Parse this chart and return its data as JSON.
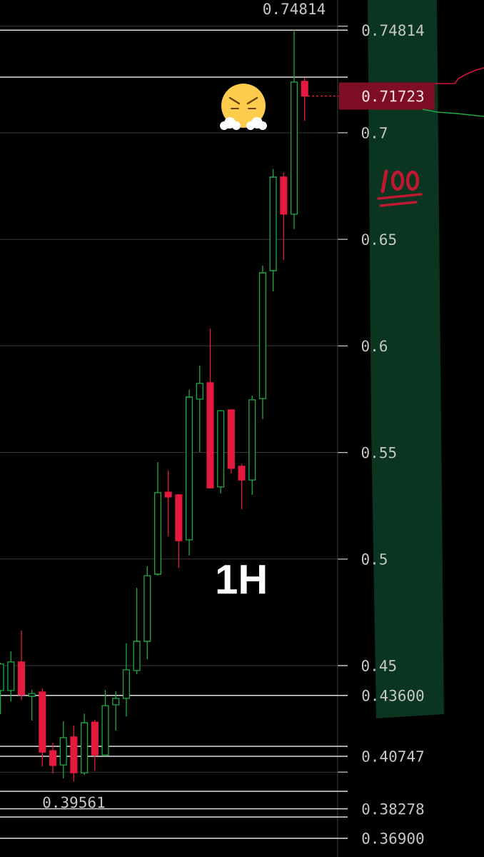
{
  "chart_data": {
    "type": "candlestick",
    "categories": [
      null,
      null,
      null,
      null,
      null,
      null,
      null,
      null,
      null,
      null,
      null,
      null,
      null,
      null,
      null,
      null,
      null,
      null,
      null,
      null,
      null,
      null,
      null,
      null,
      null,
      null,
      null,
      null,
      null,
      null
    ],
    "ohlc": [
      [
        0.4383,
        0.4513,
        0.4272,
        0.4507
      ],
      [
        0.4383,
        0.4567,
        0.4332,
        0.4517
      ],
      [
        0.4517,
        0.4664,
        0.4339,
        0.4363
      ],
      [
        0.4356,
        0.4386,
        0.4242,
        0.4369
      ],
      [
        0.4376,
        0.4393,
        0.4027,
        0.4094
      ],
      [
        0.4101,
        0.4138,
        0.3994,
        0.4031
      ],
      [
        0.4034,
        0.4239,
        0.3971,
        0.4162
      ],
      [
        0.4165,
        0.4219,
        0.39561,
        0.3997
      ],
      [
        0.3997,
        0.4275,
        0.3987,
        0.4232
      ],
      [
        0.4235,
        0.4245,
        0.4007,
        0.4081
      ],
      [
        0.4081,
        0.4386,
        0.4074,
        0.4312
      ],
      [
        0.4316,
        0.4379,
        0.4195,
        0.4346
      ],
      [
        0.4346,
        0.4604,
        0.4262,
        0.448
      ],
      [
        0.4477,
        0.4865,
        0.446,
        0.4614
      ],
      [
        0.4614,
        0.4966,
        0.453,
        0.4922
      ],
      [
        0.4929,
        0.5455,
        0.4922,
        0.5311
      ],
      [
        0.5314,
        0.5415,
        0.5107,
        0.5291
      ],
      [
        0.5301,
        0.5304,
        0.4959,
        0.5086
      ],
      [
        0.509,
        0.5794,
        0.5016,
        0.576
      ],
      [
        0.575,
        0.5908,
        0.5502,
        0.5824
      ],
      [
        0.5827,
        0.6082,
        0.5331,
        0.5334
      ],
      [
        0.5338,
        0.5699,
        0.5308,
        0.5696
      ],
      [
        0.57,
        0.5703,
        0.5401,
        0.5425
      ],
      [
        0.5435,
        0.5448,
        0.5234,
        0.5371
      ],
      [
        0.5371,
        0.5767,
        0.5301,
        0.5747
      ],
      [
        0.5753,
        0.6377,
        0.5656,
        0.6343
      ],
      [
        0.6353,
        0.6829,
        0.6256,
        0.6792
      ],
      [
        0.6792,
        0.6812,
        0.6404,
        0.6618
      ],
      [
        0.6618,
        0.74814,
        0.6548,
        0.7238
      ],
      [
        0.7241,
        0.7258,
        0.7057,
        0.71723
      ]
    ],
    "colors": [
      "#22a846",
      "#22a846",
      "#e51a3f",
      "#22a846",
      "#e51a3f",
      "#e51a3f",
      "#22a846",
      "#e51a3f",
      "#22a846",
      "#e51a3f",
      "#22a846",
      "#22a846",
      "#22a846",
      "#22a846",
      "#22a846",
      "#22a846",
      "#e51a3f",
      "#e51a3f",
      "#22a846",
      "#22a846",
      "#e51a3f",
      "#22a846",
      "#e51a3f",
      "#e51a3f",
      "#22a846",
      "#22a846",
      "#22a846",
      "#e51a3f",
      "#22a846",
      "#e51a3f"
    ],
    "ylim": [
      0.3602,
      0.7623
    ],
    "yticks": [
      {
        "value": 0.4,
        "label": null
      },
      0.45,
      0.5,
      0.55,
      0.6,
      0.65,
      0.7,
      {
        "value": 0.75,
        "label": null
      }
    ],
    "grid": "y",
    "ref_lines": [
      {
        "axis": "y",
        "value": 0.74814,
        "label": "0.74814",
        "color": "#e0e0e0"
      },
      {
        "axis": "y",
        "value": 0.7261,
        "color": "#e0e0e0"
      },
      {
        "axis": "y",
        "value": 0.71723,
        "label": "0.71723",
        "color": "#e51a3f",
        "line_style": "dotted"
      },
      {
        "axis": "y",
        "value": 0.436,
        "label": "0.43600",
        "color": "#e0e0e0"
      },
      {
        "axis": "y",
        "value": 0.4121,
        "color": "#e0e0e0"
      },
      {
        "axis": "y",
        "value": 0.40747,
        "label": "0.40747",
        "color": "#e0e0e0"
      },
      {
        "axis": "y",
        "value": 0.391,
        "color": "#e0e0e0"
      },
      {
        "axis": "y",
        "value": 0.38278,
        "label": "0.38278",
        "color": "#e0e0e0"
      },
      {
        "axis": "y",
        "value": 0.379,
        "color": "#e0e0e0"
      },
      {
        "axis": "y",
        "value": 0.369,
        "label": "0.36900",
        "color": "#e0e0e0"
      }
    ],
    "annotations": [
      {
        "text": "0.74814",
        "y": 0.74814
      },
      {
        "text": "0.39561",
        "y": 0.39561
      },
      "1H"
    ]
  }
}
